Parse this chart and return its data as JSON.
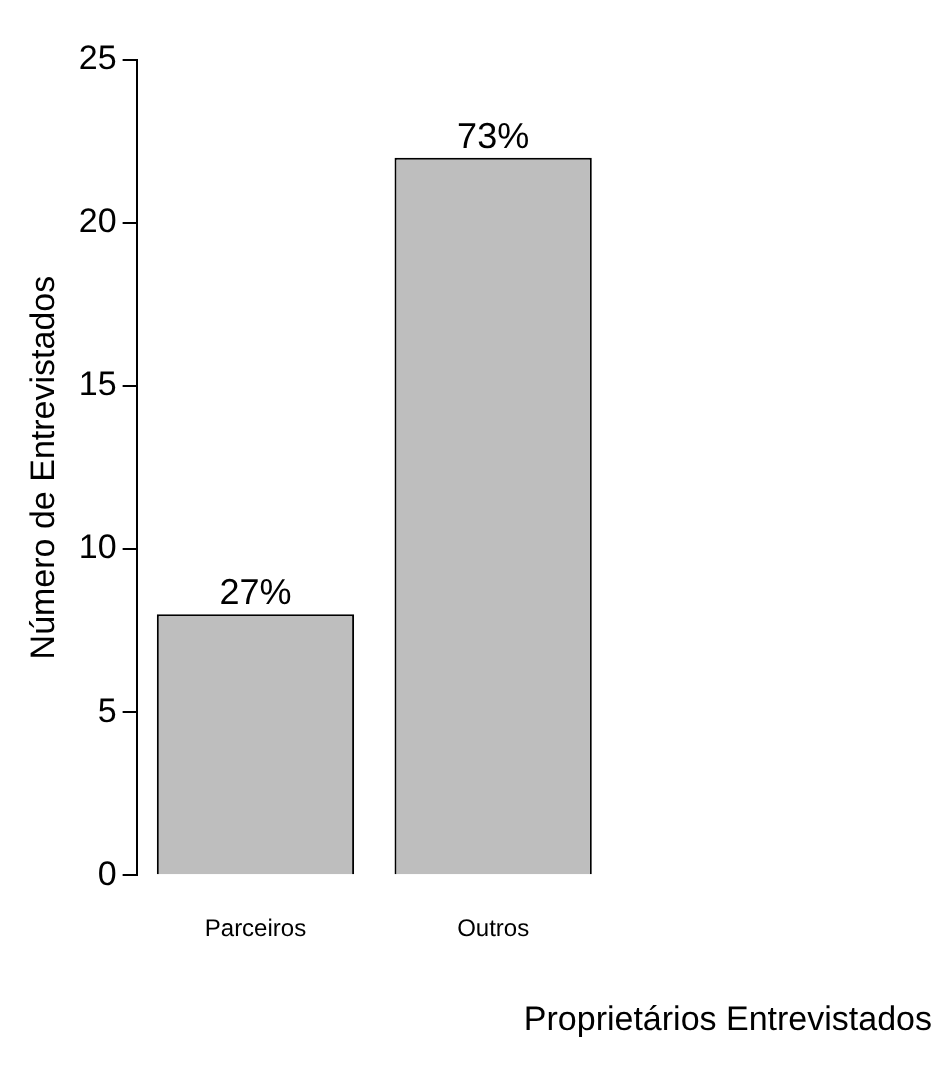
{
  "chart_data": {
    "type": "bar",
    "xlabel": "Proprietários Entrevistados",
    "ylabel": "Número de Entrevistados",
    "categories": [
      "Parceiros",
      "Outros"
    ],
    "values": [
      8,
      22
    ],
    "color": "#bebebe",
    "annotations": [
      {
        "text": "27%",
        "x": "Parceiros",
        "y": 8
      },
      {
        "text": "73%",
        "x": "Outros",
        "y": 22
      }
    ],
    "ylim": [
      0,
      25
    ],
    "yticks": [
      0,
      5,
      10,
      15,
      20,
      25
    ],
    "grid": false,
    "legend": false
  }
}
